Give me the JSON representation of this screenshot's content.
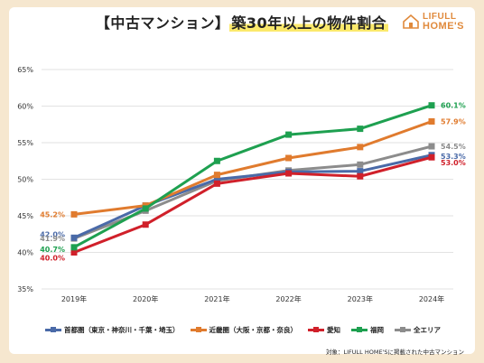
{
  "title_prefix": "【中古マンション】",
  "title_highlight": "築30年以上の物件割合",
  "logo": {
    "line1": "LIFULL",
    "line2": "HOME'S"
  },
  "note": "対象：LIFULL HOME'Sに掲載された中古マンション",
  "colors": {
    "shutoken": "#4a6aa8",
    "kinki": "#e07b2e",
    "aichi": "#d0202a",
    "fukuoka": "#1ea050",
    "zen": "#8c8c8c"
  },
  "chart_data": {
    "type": "line",
    "title": "【中古マンション】築30年以上の物件割合",
    "categories": [
      "2019年",
      "2020年",
      "2021年",
      "2022年",
      "2023年",
      "2024年"
    ],
    "ylim": [
      35,
      65
    ],
    "yticks": [
      "35%",
      "40%",
      "45%",
      "50%",
      "55%",
      "60%",
      "65%"
    ],
    "grid": true,
    "legend": "bottom",
    "series": [
      {
        "key": "shutoken",
        "name": "首都圏（東京・神奈川・千葉・埼玉）",
        "values": [
          42.0,
          46.4,
          50.0,
          51.0,
          51.1,
          53.3
        ],
        "first_label": "42.0%",
        "last_label": "53.3%"
      },
      {
        "key": "kinki",
        "name": "近畿圏（大阪・京都・奈良）",
        "values": [
          45.2,
          46.4,
          50.6,
          52.9,
          54.4,
          57.9
        ],
        "first_label": "45.2%",
        "last_label": "57.9%"
      },
      {
        "key": "aichi",
        "name": "愛知",
        "values": [
          40.0,
          43.8,
          49.4,
          50.8,
          50.4,
          53.0
        ],
        "first_label": "40.0%",
        "last_label": "53.0%"
      },
      {
        "key": "fukuoka",
        "name": "福岡",
        "values": [
          40.7,
          46.0,
          52.5,
          56.1,
          56.9,
          60.1
        ],
        "first_label": "40.7%",
        "last_label": "60.1%"
      },
      {
        "key": "zen",
        "name": "全エリア",
        "values": [
          41.9,
          45.7,
          49.8,
          51.2,
          52.0,
          54.5
        ],
        "first_label": "41.9%",
        "last_label": "54.5%"
      }
    ]
  }
}
